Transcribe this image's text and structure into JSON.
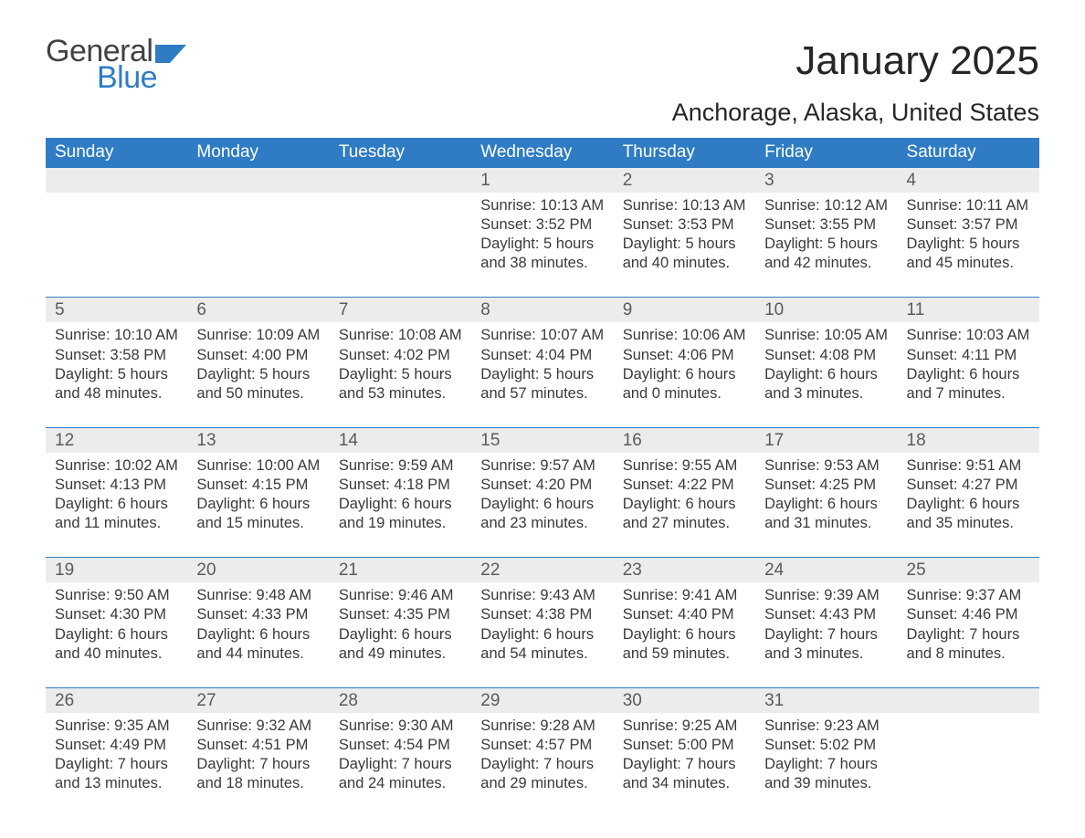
{
  "brand": {
    "line1": "General",
    "line2": "Blue",
    "accent": "#2f7cc4",
    "text_color": "#424242"
  },
  "header": {
    "title": "January 2025",
    "location": "Anchorage, Alaska, United States"
  },
  "columns": [
    "Sunday",
    "Monday",
    "Tuesday",
    "Wednesday",
    "Thursday",
    "Friday",
    "Saturday"
  ],
  "colors": {
    "header_bg": "#2f7cc4",
    "header_fg": "#ffffff",
    "row_border": "#2f7cc4",
    "daynum_bg": "#ececec",
    "daynum_fg": "#5b5b5b",
    "body_text": "#3a3a3a",
    "page_bg": "#ffffff"
  },
  "typography": {
    "title_fontsize": 44,
    "location_fontsize": 27,
    "header_fontsize": 19,
    "daynum_fontsize": 19,
    "body_fontsize": 16.5,
    "font_family": "Arial"
  },
  "layout": {
    "columns": 7,
    "rows": 5,
    "leading_blanks": 3,
    "trailing_blanks": 1
  },
  "weeks": [
    [
      null,
      null,
      null,
      {
        "num": "1",
        "sunrise": "Sunrise: 10:13 AM",
        "sunset": "Sunset: 3:52 PM",
        "dl1": "Daylight: 5 hours",
        "dl2": "and 38 minutes."
      },
      {
        "num": "2",
        "sunrise": "Sunrise: 10:13 AM",
        "sunset": "Sunset: 3:53 PM",
        "dl1": "Daylight: 5 hours",
        "dl2": "and 40 minutes."
      },
      {
        "num": "3",
        "sunrise": "Sunrise: 10:12 AM",
        "sunset": "Sunset: 3:55 PM",
        "dl1": "Daylight: 5 hours",
        "dl2": "and 42 minutes."
      },
      {
        "num": "4",
        "sunrise": "Sunrise: 10:11 AM",
        "sunset": "Sunset: 3:57 PM",
        "dl1": "Daylight: 5 hours",
        "dl2": "and 45 minutes."
      }
    ],
    [
      {
        "num": "5",
        "sunrise": "Sunrise: 10:10 AM",
        "sunset": "Sunset: 3:58 PM",
        "dl1": "Daylight: 5 hours",
        "dl2": "and 48 minutes."
      },
      {
        "num": "6",
        "sunrise": "Sunrise: 10:09 AM",
        "sunset": "Sunset: 4:00 PM",
        "dl1": "Daylight: 5 hours",
        "dl2": "and 50 minutes."
      },
      {
        "num": "7",
        "sunrise": "Sunrise: 10:08 AM",
        "sunset": "Sunset: 4:02 PM",
        "dl1": "Daylight: 5 hours",
        "dl2": "and 53 minutes."
      },
      {
        "num": "8",
        "sunrise": "Sunrise: 10:07 AM",
        "sunset": "Sunset: 4:04 PM",
        "dl1": "Daylight: 5 hours",
        "dl2": "and 57 minutes."
      },
      {
        "num": "9",
        "sunrise": "Sunrise: 10:06 AM",
        "sunset": "Sunset: 4:06 PM",
        "dl1": "Daylight: 6 hours",
        "dl2": "and 0 minutes."
      },
      {
        "num": "10",
        "sunrise": "Sunrise: 10:05 AM",
        "sunset": "Sunset: 4:08 PM",
        "dl1": "Daylight: 6 hours",
        "dl2": "and 3 minutes."
      },
      {
        "num": "11",
        "sunrise": "Sunrise: 10:03 AM",
        "sunset": "Sunset: 4:11 PM",
        "dl1": "Daylight: 6 hours",
        "dl2": "and 7 minutes."
      }
    ],
    [
      {
        "num": "12",
        "sunrise": "Sunrise: 10:02 AM",
        "sunset": "Sunset: 4:13 PM",
        "dl1": "Daylight: 6 hours",
        "dl2": "and 11 minutes."
      },
      {
        "num": "13",
        "sunrise": "Sunrise: 10:00 AM",
        "sunset": "Sunset: 4:15 PM",
        "dl1": "Daylight: 6 hours",
        "dl2": "and 15 minutes."
      },
      {
        "num": "14",
        "sunrise": "Sunrise: 9:59 AM",
        "sunset": "Sunset: 4:18 PM",
        "dl1": "Daylight: 6 hours",
        "dl2": "and 19 minutes."
      },
      {
        "num": "15",
        "sunrise": "Sunrise: 9:57 AM",
        "sunset": "Sunset: 4:20 PM",
        "dl1": "Daylight: 6 hours",
        "dl2": "and 23 minutes."
      },
      {
        "num": "16",
        "sunrise": "Sunrise: 9:55 AM",
        "sunset": "Sunset: 4:22 PM",
        "dl1": "Daylight: 6 hours",
        "dl2": "and 27 minutes."
      },
      {
        "num": "17",
        "sunrise": "Sunrise: 9:53 AM",
        "sunset": "Sunset: 4:25 PM",
        "dl1": "Daylight: 6 hours",
        "dl2": "and 31 minutes."
      },
      {
        "num": "18",
        "sunrise": "Sunrise: 9:51 AM",
        "sunset": "Sunset: 4:27 PM",
        "dl1": "Daylight: 6 hours",
        "dl2": "and 35 minutes."
      }
    ],
    [
      {
        "num": "19",
        "sunrise": "Sunrise: 9:50 AM",
        "sunset": "Sunset: 4:30 PM",
        "dl1": "Daylight: 6 hours",
        "dl2": "and 40 minutes."
      },
      {
        "num": "20",
        "sunrise": "Sunrise: 9:48 AM",
        "sunset": "Sunset: 4:33 PM",
        "dl1": "Daylight: 6 hours",
        "dl2": "and 44 minutes."
      },
      {
        "num": "21",
        "sunrise": "Sunrise: 9:46 AM",
        "sunset": "Sunset: 4:35 PM",
        "dl1": "Daylight: 6 hours",
        "dl2": "and 49 minutes."
      },
      {
        "num": "22",
        "sunrise": "Sunrise: 9:43 AM",
        "sunset": "Sunset: 4:38 PM",
        "dl1": "Daylight: 6 hours",
        "dl2": "and 54 minutes."
      },
      {
        "num": "23",
        "sunrise": "Sunrise: 9:41 AM",
        "sunset": "Sunset: 4:40 PM",
        "dl1": "Daylight: 6 hours",
        "dl2": "and 59 minutes."
      },
      {
        "num": "24",
        "sunrise": "Sunrise: 9:39 AM",
        "sunset": "Sunset: 4:43 PM",
        "dl1": "Daylight: 7 hours",
        "dl2": "and 3 minutes."
      },
      {
        "num": "25",
        "sunrise": "Sunrise: 9:37 AM",
        "sunset": "Sunset: 4:46 PM",
        "dl1": "Daylight: 7 hours",
        "dl2": "and 8 minutes."
      }
    ],
    [
      {
        "num": "26",
        "sunrise": "Sunrise: 9:35 AM",
        "sunset": "Sunset: 4:49 PM",
        "dl1": "Daylight: 7 hours",
        "dl2": "and 13 minutes."
      },
      {
        "num": "27",
        "sunrise": "Sunrise: 9:32 AM",
        "sunset": "Sunset: 4:51 PM",
        "dl1": "Daylight: 7 hours",
        "dl2": "and 18 minutes."
      },
      {
        "num": "28",
        "sunrise": "Sunrise: 9:30 AM",
        "sunset": "Sunset: 4:54 PM",
        "dl1": "Daylight: 7 hours",
        "dl2": "and 24 minutes."
      },
      {
        "num": "29",
        "sunrise": "Sunrise: 9:28 AM",
        "sunset": "Sunset: 4:57 PM",
        "dl1": "Daylight: 7 hours",
        "dl2": "and 29 minutes."
      },
      {
        "num": "30",
        "sunrise": "Sunrise: 9:25 AM",
        "sunset": "Sunset: 5:00 PM",
        "dl1": "Daylight: 7 hours",
        "dl2": "and 34 minutes."
      },
      {
        "num": "31",
        "sunrise": "Sunrise: 9:23 AM",
        "sunset": "Sunset: 5:02 PM",
        "dl1": "Daylight: 7 hours",
        "dl2": "and 39 minutes."
      },
      null
    ]
  ]
}
